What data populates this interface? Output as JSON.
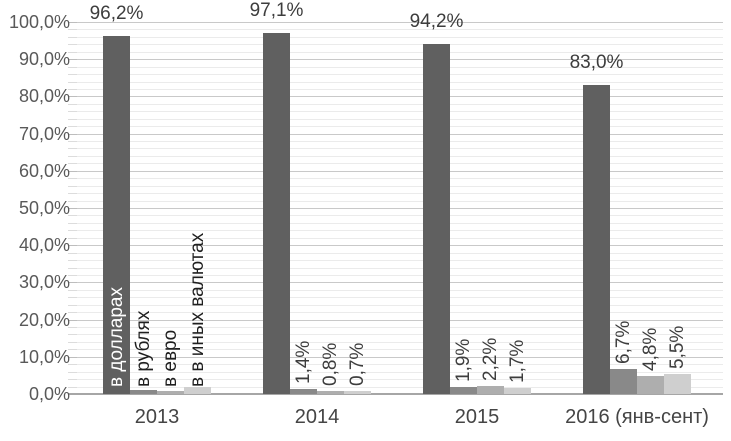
{
  "chart_data": {
    "type": "bar",
    "title": "",
    "categories": [
      "2013",
      "2014",
      "2015",
      "2016 (янв-сент)"
    ],
    "series": [
      {
        "name": "в долларах",
        "color": "#606060",
        "values": [
          96.2,
          97.1,
          94.2,
          83.0
        ],
        "data_labels": [
          "96,2%",
          "97,1%",
          "94,2%",
          "83,0%"
        ],
        "label_style": "horizontal-above"
      },
      {
        "name": "в рублях",
        "color": "#898989",
        "values": [
          1.2,
          1.4,
          1.9,
          6.7
        ],
        "data_labels": [
          "",
          "1,4%",
          "1,9%",
          "6,7%"
        ],
        "label_style": "rotated-above"
      },
      {
        "name": "в евро",
        "color": "#aeaeae",
        "values": [
          0.8,
          0.8,
          2.2,
          4.8
        ],
        "data_labels": [
          "",
          "0,8%",
          "2,2%",
          "4,8%"
        ],
        "label_style": "rotated-above"
      },
      {
        "name": "в в иных валютах",
        "color": "#cfcfcf",
        "values": [
          1.8,
          0.7,
          1.7,
          5.5
        ],
        "data_labels": [
          "",
          "0,7%",
          "1,7%",
          "5,5%"
        ],
        "label_style": "rotated-above"
      }
    ],
    "series_name_labels": {
      "shown_on_category": "2013",
      "orientation": "rotated-90",
      "text_colors": [
        "#ffffff",
        "#1f1f1f",
        "#1f1f1f",
        "#1f1f1f"
      ]
    },
    "y_axis": {
      "min": 0,
      "max": 100,
      "major_step": 10,
      "minor_step": 2,
      "tick_labels": [
        "0,0%",
        "10,0%",
        "20,0%",
        "30,0%",
        "40,0%",
        "50,0%",
        "60,0%",
        "70,0%",
        "80,0%",
        "90,0%",
        "100,0%"
      ]
    },
    "x_axis": {
      "labels": [
        "2013",
        "2014",
        "2015",
        "2016 (янв-сент)"
      ]
    },
    "legend_position": "none",
    "grid": {
      "major": true,
      "minor": true
    },
    "colors": {
      "background": "#ffffff",
      "major_grid": "#c9c9c9",
      "minor_grid": "#ebebeb",
      "major_tick": "#bdbdbd",
      "minor_tick": "#dcdcdc",
      "axis_line": "#a6a6a6",
      "y_tick_text": "#595959",
      "x_tick_text": "#454545",
      "value_label_text": "#3d3d3d"
    }
  }
}
